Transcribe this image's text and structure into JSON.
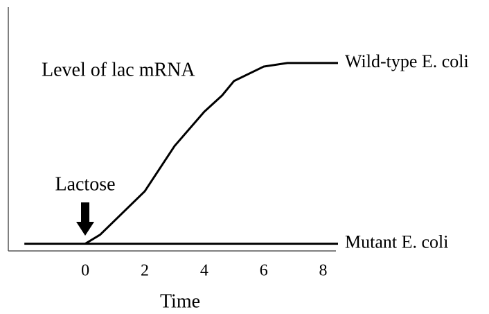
{
  "chart_data": {
    "type": "line",
    "title": "Level of lac mRNA",
    "xlabel": "Time",
    "annotation": "Lactose",
    "x": [
      -2.05,
      0,
      0.5,
      1,
      2,
      3,
      4,
      4.6,
      5,
      6,
      6.8,
      8.5
    ],
    "series": [
      {
        "name": "Wild-type E. coli",
        "color": "#000000",
        "values": [
          null,
          0,
          0.05,
          0.13,
          0.29,
          0.54,
          0.73,
          0.82,
          0.9,
          0.98,
          1,
          1
        ]
      },
      {
        "name": "Mutant E. coli",
        "color": "#000000",
        "values": [
          0,
          0,
          0,
          0,
          0,
          0,
          0,
          0,
          0,
          0,
          0,
          0
        ]
      }
    ],
    "xlim": [
      -2.59,
      8.5
    ],
    "xticks": [
      0,
      2,
      4,
      6,
      8
    ],
    "ylim": [
      -0.04,
      1.31
    ]
  }
}
